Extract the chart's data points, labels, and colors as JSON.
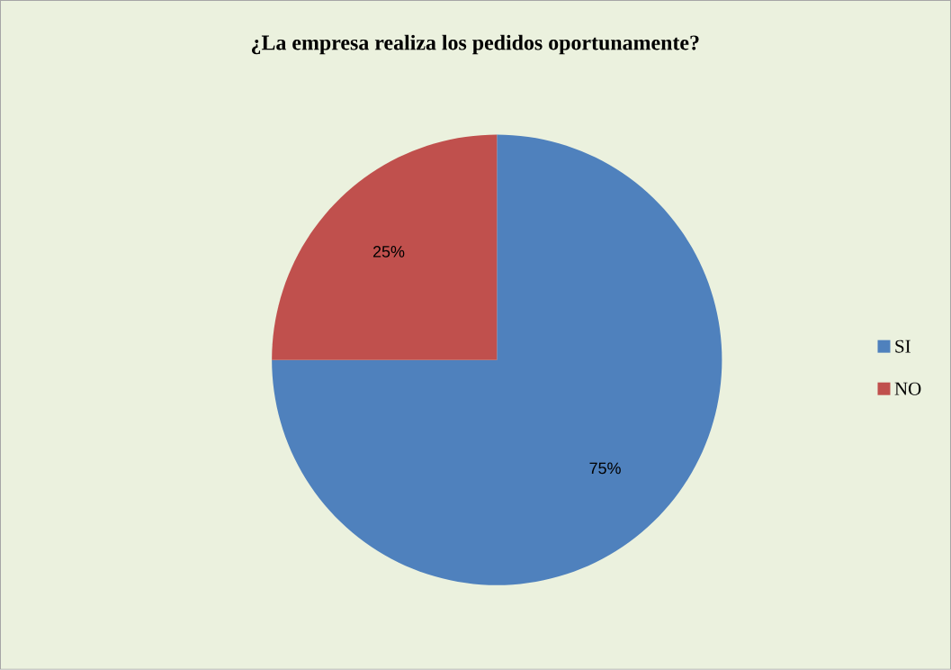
{
  "chart_data": {
    "type": "pie",
    "title": "¿La empresa realiza los pedidos oportunamente?",
    "categories": [
      "SI",
      "NO"
    ],
    "values": [
      75,
      25
    ],
    "colors": [
      "#4f81bd",
      "#c0504d"
    ],
    "value_labels": [
      "75%",
      "25%"
    ],
    "legend": "right"
  }
}
